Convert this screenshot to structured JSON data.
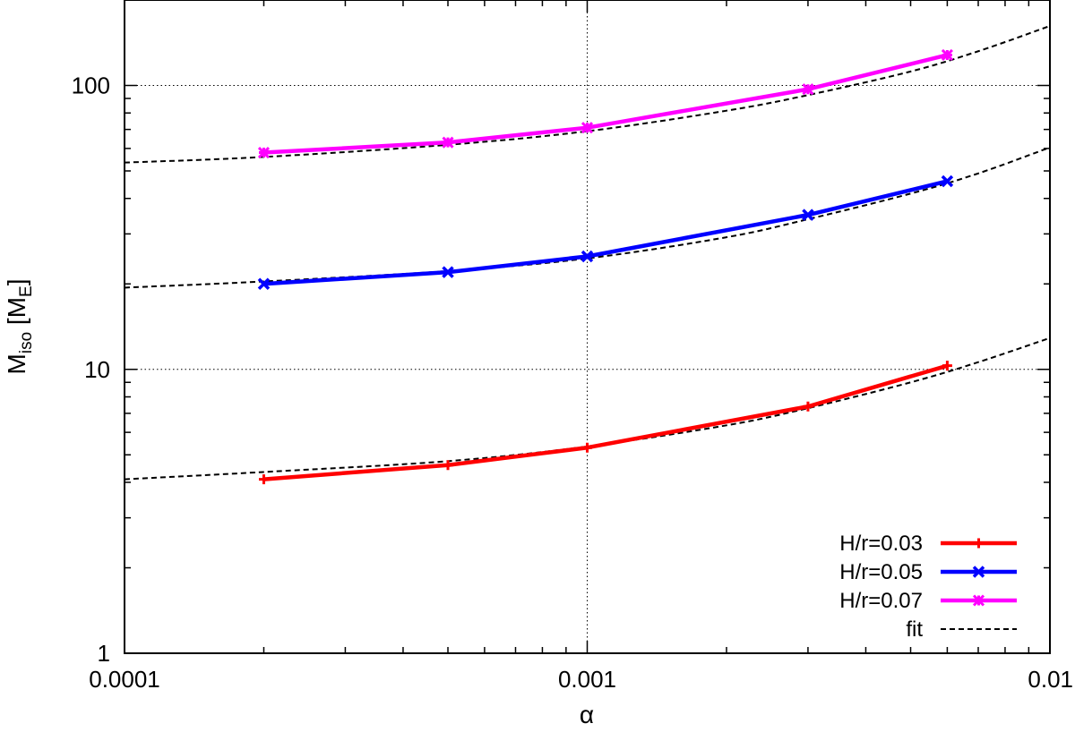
{
  "chart_data": {
    "type": "line",
    "title": "",
    "xlabel": "α",
    "ylabel": {
      "main": "M",
      "sub": "iso",
      "unit_open": " [M",
      "unit_sub": "E",
      "unit_close": "]"
    },
    "xscale": "log",
    "yscale": "log",
    "xlim": [
      0.0001,
      0.01
    ],
    "ylim": [
      1,
      200
    ],
    "grid": "dotted lines at major decades",
    "grid_x": [
      0.001
    ],
    "grid_y": [
      10,
      100
    ],
    "legend_position": "bottom-right",
    "x_ticks": [
      {
        "value": 0.0001,
        "label": "0.0001"
      },
      {
        "value": 0.001,
        "label": "0.001"
      },
      {
        "value": 0.01,
        "label": "0.01"
      }
    ],
    "y_ticks": [
      {
        "value": 1,
        "label": "1"
      },
      {
        "value": 10,
        "label": "10"
      },
      {
        "value": 100,
        "label": "100"
      }
    ],
    "x": [
      0.0002,
      0.0005,
      0.001,
      0.003,
      0.006
    ],
    "series": [
      {
        "name": "H/r=0.03",
        "color": "#ff0000",
        "marker": "plus",
        "values": [
          4.1,
          4.6,
          5.3,
          7.4,
          10.3
        ]
      },
      {
        "name": "H/r=0.05",
        "color": "#0000ff",
        "marker": "cross",
        "values": [
          20,
          22,
          25,
          35,
          46
        ]
      },
      {
        "name": "H/r=0.07",
        "color": "#ff00ff",
        "marker": "star",
        "values": [
          58,
          63,
          71,
          97,
          128
        ]
      }
    ],
    "fit": {
      "name": "fit",
      "color": "#000000",
      "style": "dashed",
      "curves": [
        {
          "x": [
            0.0001,
            0.0002,
            0.0005,
            0.001,
            0.002,
            0.003,
            0.005,
            0.007,
            0.01
          ],
          "y": [
            4.1,
            4.35,
            4.75,
            5.35,
            6.35,
            7.3,
            9.0,
            10.6,
            12.9
          ]
        },
        {
          "x": [
            0.0001,
            0.0002,
            0.0005,
            0.001,
            0.002,
            0.003,
            0.005,
            0.007,
            0.01
          ],
          "y": [
            19.4,
            20.4,
            22.2,
            24.6,
            29.2,
            33.8,
            41.6,
            49.0,
            60.5
          ]
        },
        {
          "x": [
            0.0001,
            0.0002,
            0.0005,
            0.001,
            0.002,
            0.003,
            0.005,
            0.007,
            0.01
          ],
          "y": [
            53.5,
            56.0,
            61.8,
            69.0,
            81.5,
            92.5,
            112.0,
            132.0,
            162.0
          ]
        }
      ]
    }
  }
}
